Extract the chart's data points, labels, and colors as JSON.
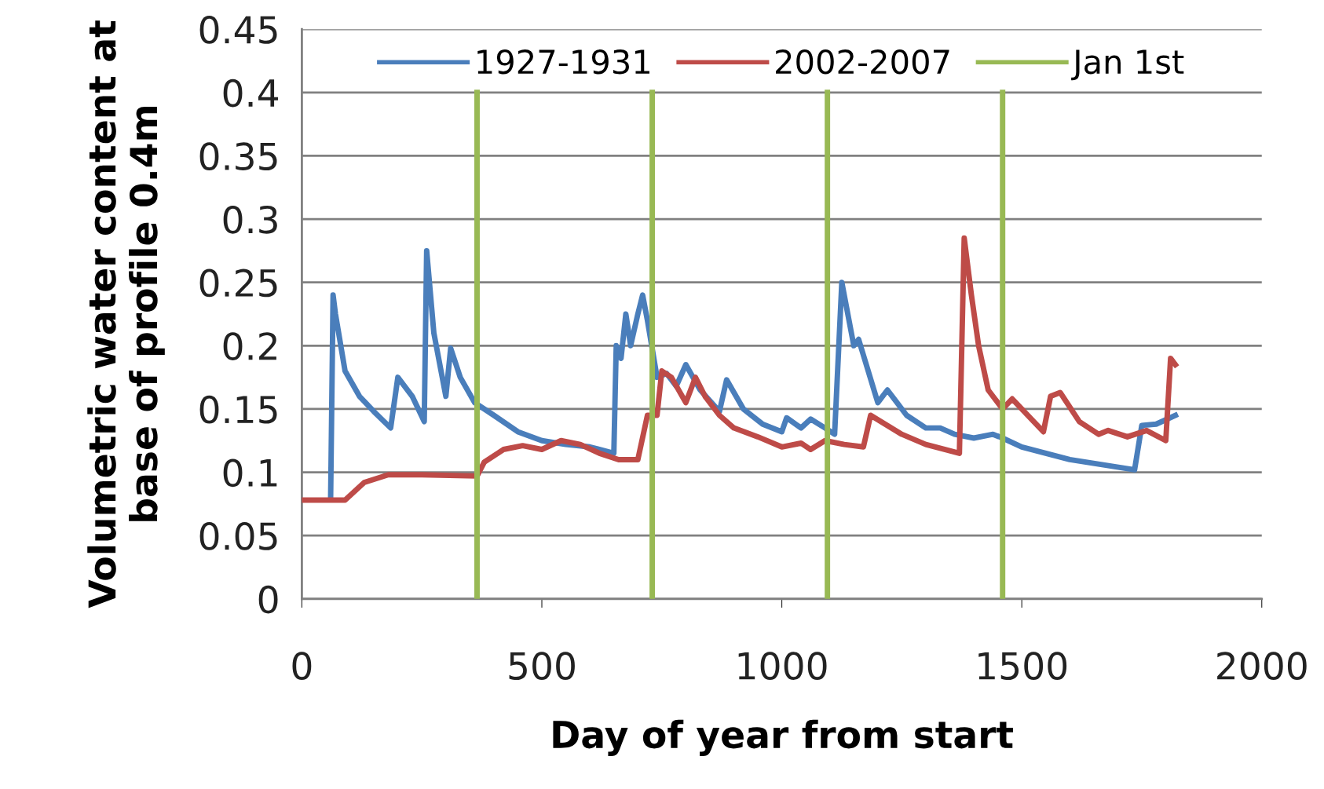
{
  "chart_data": {
    "type": "line",
    "xlabel": "Day of year from start",
    "ylabel": "Volumetric water content at\nbase of profile 0.4m",
    "xlim": [
      0,
      2000
    ],
    "xticks": [
      0,
      500,
      1000,
      1500,
      2000
    ],
    "ylim": [
      0,
      0.45
    ],
    "yticks": [
      0,
      0.05,
      0.1,
      0.15,
      0.2,
      0.25,
      0.3,
      0.35,
      0.4,
      0.45
    ],
    "grid": "y",
    "legend": "top",
    "marker": "none",
    "line_style": "solid",
    "series": [
      {
        "name": "1927-1931",
        "color": "#4a7ebb",
        "x": [
          60,
          65,
          70,
          90,
          120,
          150,
          185,
          200,
          230,
          255,
          260,
          275,
          290,
          300,
          310,
          330,
          360,
          400,
          450,
          500,
          550,
          600,
          650,
          655,
          665,
          675,
          685,
          700,
          710,
          720,
          740,
          760,
          780,
          800,
          830,
          870,
          885,
          920,
          960,
          1000,
          1010,
          1040,
          1060,
          1090,
          1110,
          1125,
          1150,
          1160,
          1200,
          1220,
          1260,
          1300,
          1330,
          1360,
          1400,
          1440,
          1460,
          1500,
          1600,
          1735,
          1750,
          1780,
          1820
        ],
        "values": [
          0.082,
          0.24,
          0.225,
          0.18,
          0.16,
          0.148,
          0.135,
          0.175,
          0.16,
          0.14,
          0.275,
          0.21,
          0.18,
          0.16,
          0.198,
          0.175,
          0.155,
          0.145,
          0.132,
          0.125,
          0.122,
          0.12,
          0.115,
          0.2,
          0.19,
          0.225,
          0.2,
          0.225,
          0.24,
          0.22,
          0.175,
          0.178,
          0.168,
          0.185,
          0.165,
          0.148,
          0.173,
          0.15,
          0.138,
          0.132,
          0.143,
          0.135,
          0.142,
          0.135,
          0.13,
          0.25,
          0.2,
          0.205,
          0.155,
          0.165,
          0.145,
          0.135,
          0.135,
          0.13,
          0.127,
          0.13,
          0.127,
          0.12,
          0.11,
          0.102,
          0.137,
          0.138,
          0.145
        ]
      },
      {
        "name": "2002-2007",
        "color": "#be4b48",
        "x": [
          0,
          90,
          130,
          180,
          250,
          365,
          380,
          420,
          460,
          500,
          540,
          580,
          620,
          660,
          700,
          720,
          740,
          750,
          770,
          800,
          820,
          840,
          870,
          900,
          950,
          1000,
          1040,
          1060,
          1090,
          1130,
          1170,
          1185,
          1250,
          1300,
          1370,
          1380,
          1395,
          1410,
          1430,
          1460,
          1480,
          1520,
          1545,
          1560,
          1580,
          1620,
          1660,
          1680,
          1720,
          1760,
          1800,
          1810,
          1820
        ],
        "values": [
          0.078,
          0.078,
          0.092,
          0.098,
          0.098,
          0.097,
          0.108,
          0.118,
          0.121,
          0.118,
          0.125,
          0.122,
          0.115,
          0.11,
          0.11,
          0.145,
          0.145,
          0.18,
          0.175,
          0.155,
          0.175,
          0.16,
          0.145,
          0.135,
          0.128,
          0.12,
          0.123,
          0.118,
          0.125,
          0.122,
          0.12,
          0.145,
          0.13,
          0.122,
          0.115,
          0.285,
          0.24,
          0.2,
          0.165,
          0.15,
          0.158,
          0.142,
          0.132,
          0.16,
          0.163,
          0.14,
          0.13,
          0.133,
          0.128,
          0.133,
          0.125,
          0.19,
          0.185
        ]
      },
      {
        "name": "Jan 1st",
        "color": "#98b954",
        "x": [
          365,
          365,
          null,
          730,
          730,
          null,
          1095,
          1095,
          null,
          1460,
          1460
        ],
        "values": [
          0,
          0.4,
          null,
          0,
          0.4,
          null,
          0,
          0.4,
          null,
          0,
          0.4
        ]
      }
    ]
  }
}
